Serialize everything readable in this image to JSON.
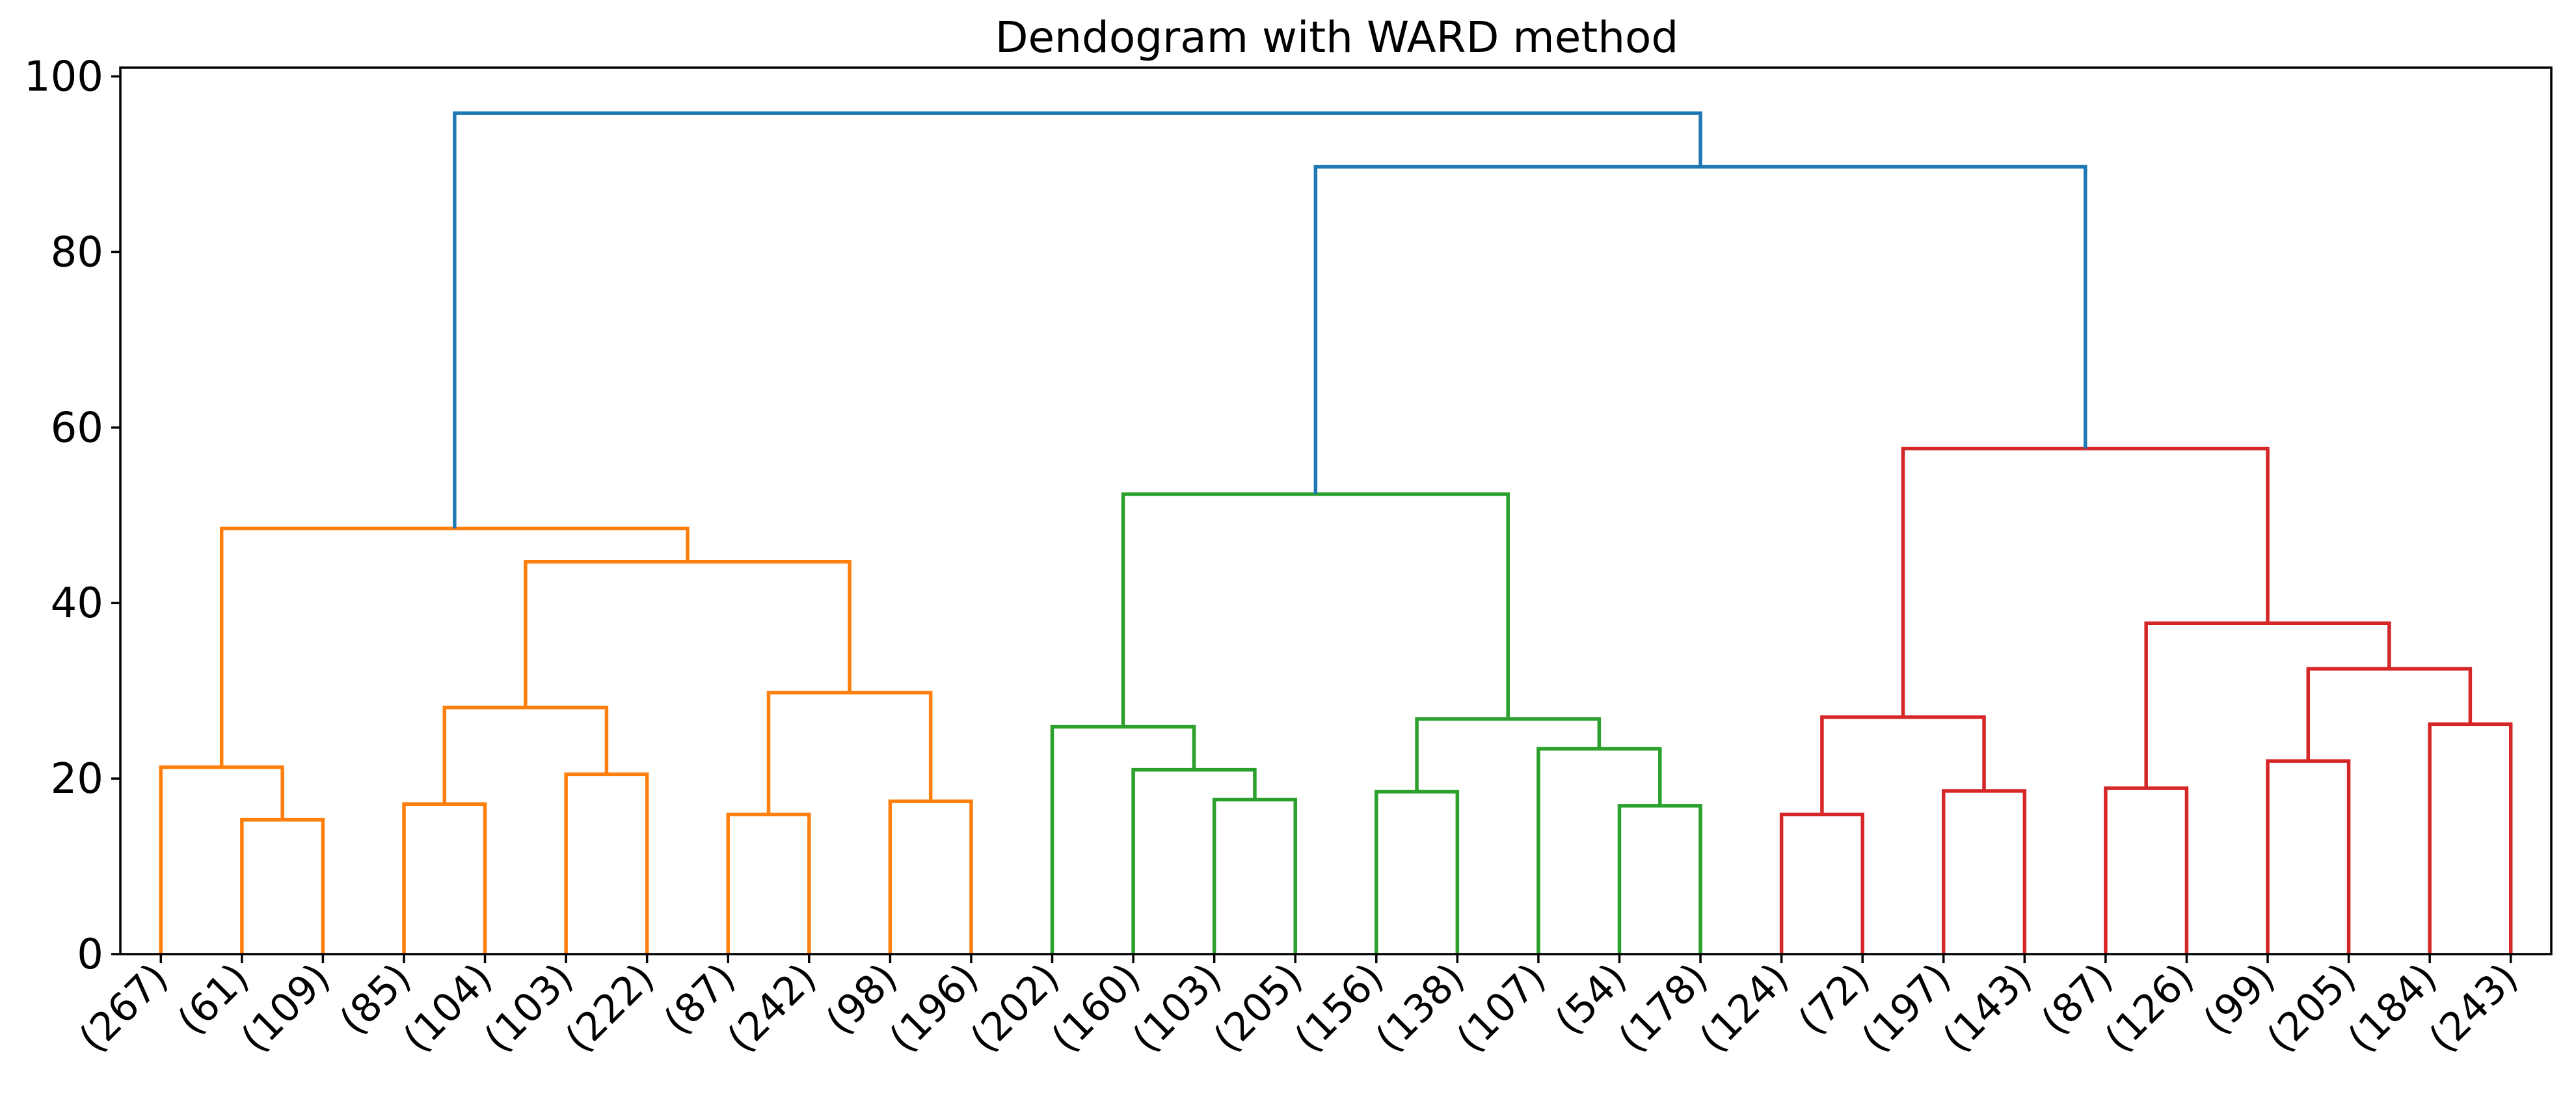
{
  "chart_data": {
    "type": "dendrogram",
    "title": "Dendogram with WARD method",
    "xlabel": "",
    "ylabel": "",
    "ylim": [
      0,
      101
    ],
    "yticks": [
      0,
      20,
      40,
      60,
      80,
      100
    ],
    "grid": false,
    "leaves": [
      "(267)",
      "(61)",
      "(109)",
      "(85)",
      "(104)",
      "(103)",
      "(222)",
      "(87)",
      "(242)",
      "(98)",
      "(196)",
      "(202)",
      "(160)",
      "(103)",
      "(205)",
      "(156)",
      "(138)",
      "(107)",
      "(54)",
      "(178)",
      "(124)",
      "(72)",
      "(197)",
      "(143)",
      "(87)",
      "(126)",
      "(99)",
      "(205)",
      "(184)",
      "(243)"
    ],
    "clusters": [
      {
        "color": "#ff7f0e",
        "leaves": [
          0,
          10
        ]
      },
      {
        "color": "#2ca02c",
        "leaves": [
          11,
          19
        ]
      },
      {
        "color": "#d62728",
        "leaves": [
          20,
          29
        ]
      }
    ],
    "above_threshold_color": "#1f77b4",
    "merges": [
      {
        "left": "L1",
        "right": "L2",
        "height": 15.3,
        "color": "#ff7f0e"
      },
      {
        "left": "L0",
        "right": "M0",
        "height": 21.3,
        "color": "#ff7f0e"
      },
      {
        "left": "L3",
        "right": "L4",
        "height": 17.1,
        "color": "#ff7f0e"
      },
      {
        "left": "L5",
        "right": "L6",
        "height": 20.5,
        "color": "#ff7f0e"
      },
      {
        "left": "M2",
        "right": "M3",
        "height": 28.1,
        "color": "#ff7f0e"
      },
      {
        "left": "L7",
        "right": "L8",
        "height": 15.9,
        "color": "#ff7f0e"
      },
      {
        "left": "L9",
        "right": "L10",
        "height": 17.4,
        "color": "#ff7f0e"
      },
      {
        "left": "M5",
        "right": "M6",
        "height": 29.8,
        "color": "#ff7f0e"
      },
      {
        "left": "M4",
        "right": "M7",
        "height": 44.7,
        "color": "#ff7f0e"
      },
      {
        "left": "M1",
        "right": "M8",
        "height": 48.5,
        "color": "#ff7f0e"
      },
      {
        "left": "L13",
        "right": "L14",
        "height": 17.6,
        "color": "#2ca02c"
      },
      {
        "left": "L12",
        "right": "M10",
        "height": 21.0,
        "color": "#2ca02c"
      },
      {
        "left": "L11",
        "right": "M11",
        "height": 25.9,
        "color": "#2ca02c"
      },
      {
        "left": "L15",
        "right": "L16",
        "height": 18.5,
        "color": "#2ca02c"
      },
      {
        "left": "L18",
        "right": "L19",
        "height": 16.9,
        "color": "#2ca02c"
      },
      {
        "left": "L17",
        "right": "M14",
        "height": 23.4,
        "color": "#2ca02c"
      },
      {
        "left": "M13",
        "right": "M15",
        "height": 26.8,
        "color": "#2ca02c"
      },
      {
        "left": "M12",
        "right": "M16",
        "height": 52.4,
        "color": "#2ca02c"
      },
      {
        "left": "L20",
        "right": "L21",
        "height": 15.9,
        "color": "#d62728"
      },
      {
        "left": "L22",
        "right": "L23",
        "height": 18.6,
        "color": "#d62728"
      },
      {
        "left": "M18",
        "right": "M19",
        "height": 27.0,
        "color": "#d62728"
      },
      {
        "left": "L24",
        "right": "L25",
        "height": 18.9,
        "color": "#d62728"
      },
      {
        "left": "L26",
        "right": "L27",
        "height": 22.0,
        "color": "#d62728"
      },
      {
        "left": "L28",
        "right": "L29",
        "height": 26.2,
        "color": "#d62728"
      },
      {
        "left": "M22",
        "right": "M23",
        "height": 32.5,
        "color": "#d62728"
      },
      {
        "left": "M21",
        "right": "M24",
        "height": 37.7,
        "color": "#d62728"
      },
      {
        "left": "M20",
        "right": "M25",
        "height": 57.6,
        "color": "#d62728"
      },
      {
        "left": "M17",
        "right": "M26",
        "height": 89.7,
        "color": "#1f77b4"
      },
      {
        "left": "M9",
        "right": "M27",
        "height": 95.8,
        "color": "#1f77b4"
      }
    ]
  }
}
